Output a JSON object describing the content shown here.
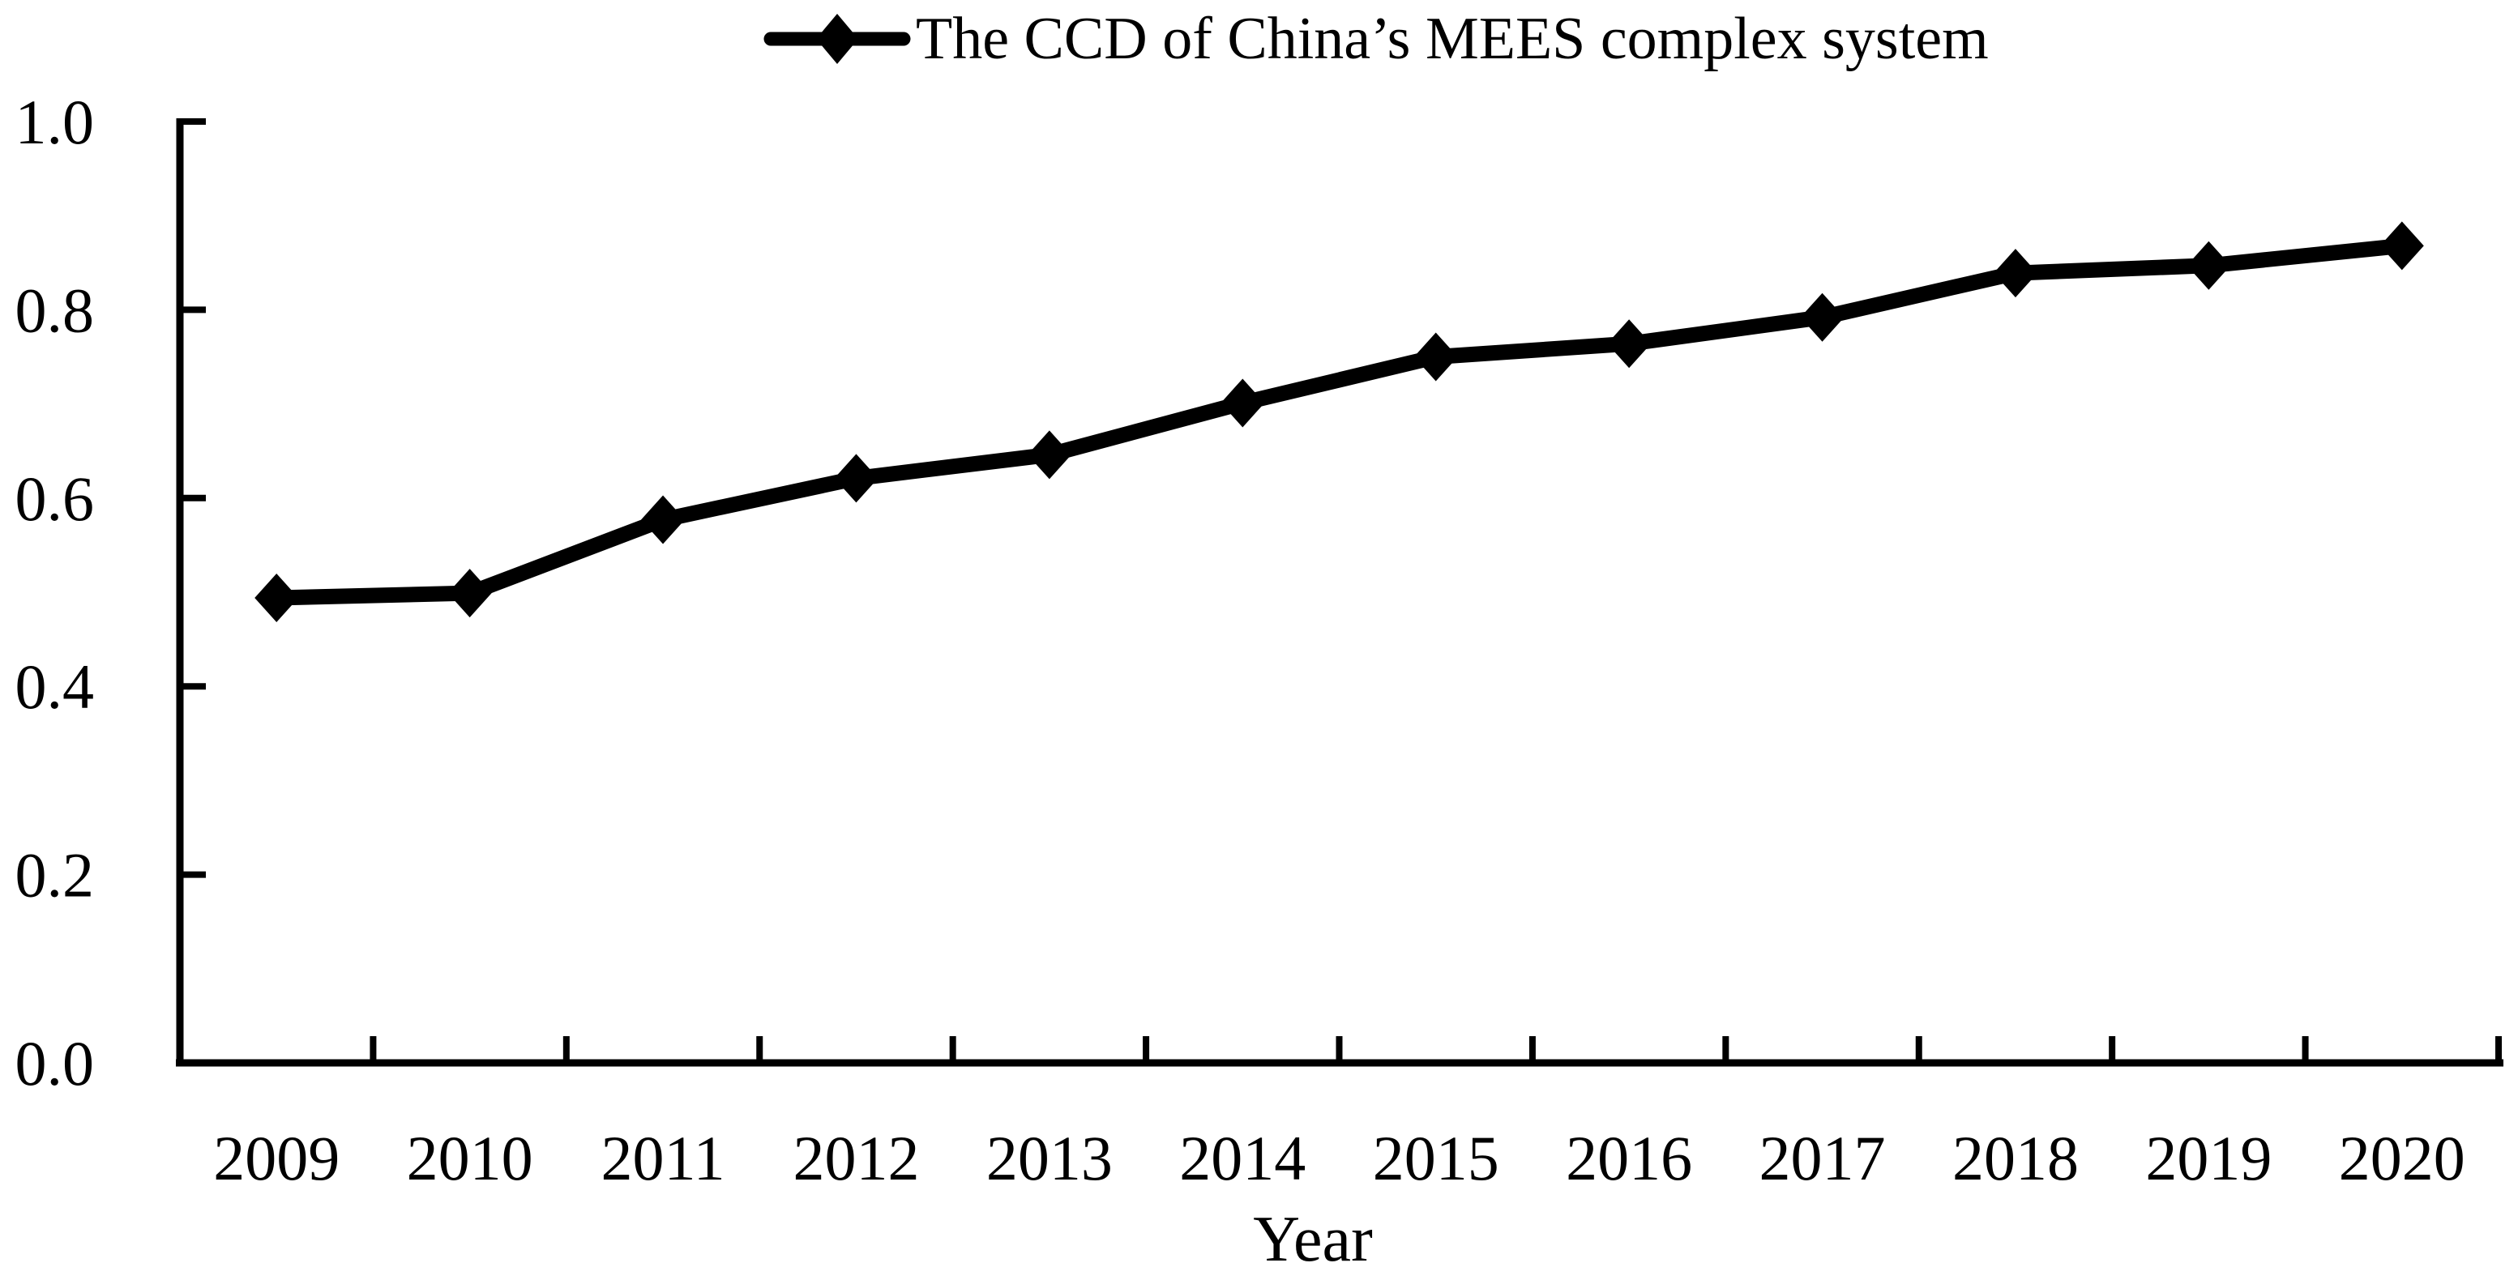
{
  "figure": {
    "background": "#ffffff",
    "ink_color": "#000000"
  },
  "chart_data": {
    "type": "line",
    "title": "",
    "xlabel": "Year",
    "ylabel": "",
    "categories": [
      "2009",
      "2010",
      "2011",
      "2012",
      "2013",
      "2014",
      "2015",
      "2016",
      "2017",
      "2018",
      "2019",
      "2020"
    ],
    "series": [
      {
        "name": "The CCD of China’s MEES complex system",
        "values": [
          0.494,
          0.499,
          0.577,
          0.621,
          0.646,
          0.701,
          0.75,
          0.764,
          0.792,
          0.839,
          0.847,
          0.868
        ],
        "color": "#000000",
        "marker": "diamond"
      }
    ],
    "ylim": [
      0.0,
      1.0
    ],
    "y_ticks": [
      "0.0",
      "0.2",
      "0.4",
      "0.6",
      "0.8",
      "1.0"
    ],
    "x_boundary_ticks": 13,
    "grid": false,
    "legend_position": "top-center"
  }
}
